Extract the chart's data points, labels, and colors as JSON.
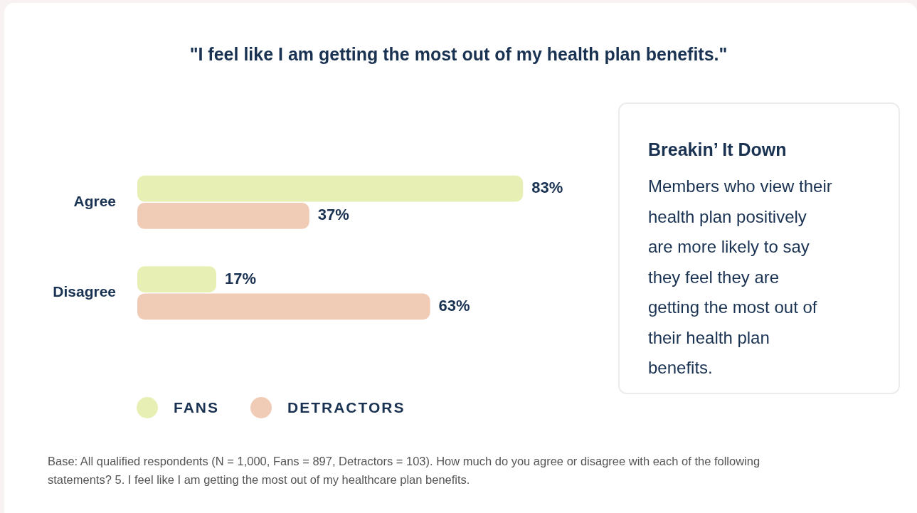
{
  "chart_data": [
    {
      "type": "bar",
      "orientation": "horizontal",
      "title": "\"I feel like I am getting the most out of my health plan benefits.\"",
      "categories": [
        "Agree",
        "Disagree"
      ],
      "legend": "bottom",
      "series": [
        {
          "name": "FANS",
          "color": "#e8efb4",
          "values": [
            83,
            17
          ],
          "value_labels": [
            "83%",
            "17%"
          ]
        },
        {
          "name": "DETRACTORS",
          "color": "#f0cbb6",
          "values": [
            37,
            63
          ],
          "value_labels": [
            "37%",
            "63%"
          ]
        }
      ],
      "annotations": [
        "Base: All qualified respondents (N = 1,000, Fans = 897, Detractors = 103). How much do you agree or disagree with each of the following statements? 5. I feel like I am getting the most out of my healthcare plan benefits."
      ]
    },
    {
      "type": "other",
      "title": "Breakin’ It Down",
      "annotations": [
        "Members who view their health plan positively are more likely to say they feel they are getting the most out of their health plan benefits."
      ]
    }
  ]
}
